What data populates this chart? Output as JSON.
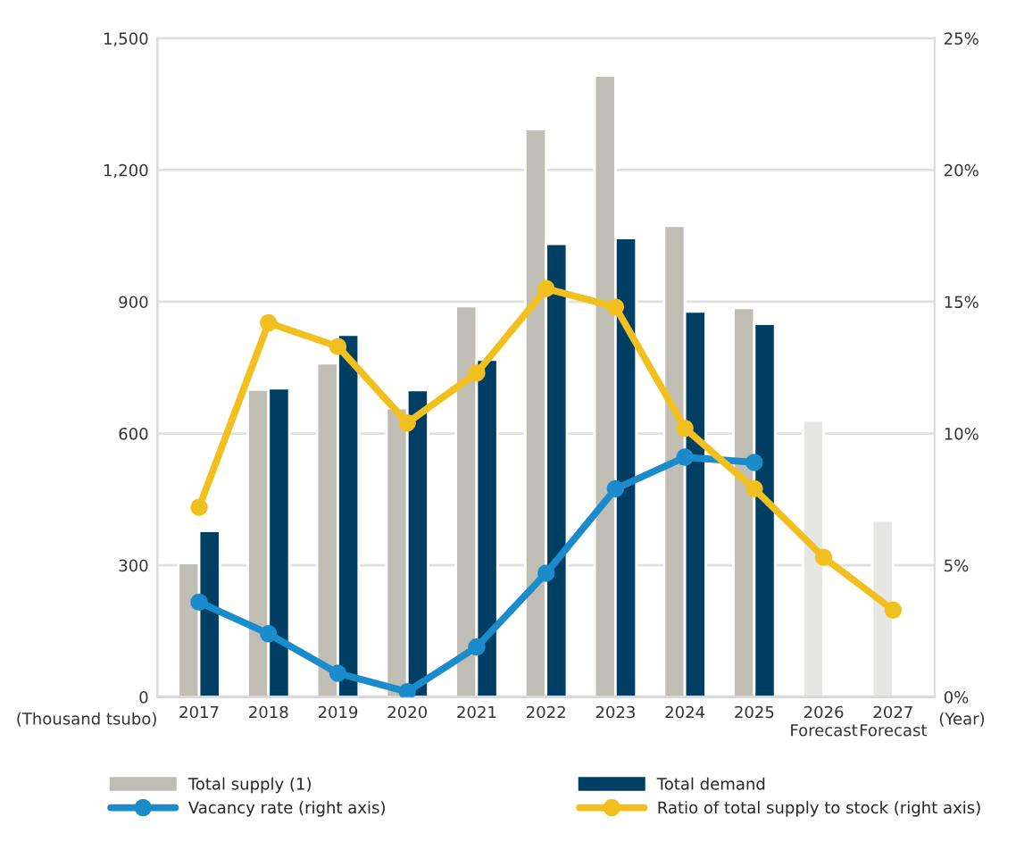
{
  "chart_data": {
    "type": "bar",
    "categories": [
      "2017",
      "2018",
      "2019",
      "2020",
      "2021",
      "2022",
      "2023",
      "2024",
      "2025",
      "2026\nForecast",
      "2027\nForecast"
    ],
    "series": [
      {
        "name": "Total supply (1)",
        "type": "bar",
        "color": "#c0bdb4",
        "colors": [
          "#c0bdb4",
          "#c0bdb4",
          "#c0bdb4",
          "#c0bdb4",
          "#c0bdb4",
          "#c0bdb4",
          "#c0bdb4",
          "#c0bdb4",
          "#c0bdb4",
          "#e6e6e4",
          "#e6e6e4"
        ],
        "values": [
          305,
          700,
          760,
          658,
          890,
          1293,
          1415,
          1073,
          886,
          630,
          402
        ]
      },
      {
        "name": "Total demand",
        "type": "bar",
        "color": "#003f63",
        "values": [
          378,
          703,
          825,
          699,
          768,
          1032,
          1045,
          878,
          850,
          null,
          null
        ]
      },
      {
        "name": "Vacancy rate (right axis)",
        "type": "line",
        "axis": "y2",
        "color": "#1a8ccc",
        "values": [
          3.6,
          2.4,
          0.9,
          0.2,
          1.9,
          4.7,
          7.9,
          9.1,
          8.9,
          null,
          null
        ]
      },
      {
        "name": "Ratio of total supply to stock (right axis)",
        "type": "line",
        "axis": "y2",
        "color": "#f2c01e",
        "values": [
          7.2,
          14.2,
          13.3,
          10.4,
          12.3,
          15.5,
          14.8,
          10.2,
          7.9,
          5.3,
          3.3
        ]
      }
    ],
    "ylabel": "(Thousand tsubo)",
    "xlabel": "(Year)",
    "ylim": [
      0,
      1500
    ],
    "yticks": [
      {
        "value": 0,
        "label": "0"
      },
      {
        "value": 300,
        "label": "300"
      },
      {
        "value": 600,
        "label": "600"
      },
      {
        "value": 900,
        "label": "900"
      },
      {
        "value": 1200,
        "label": "1,200"
      },
      {
        "value": 1500,
        "label": "1,500"
      }
    ],
    "y2lim": [
      0,
      25
    ],
    "y2ticks": [
      {
        "value": 0,
        "label": "0%"
      },
      {
        "value": 5,
        "label": "5%"
      },
      {
        "value": 10,
        "label": "10%"
      },
      {
        "value": 15,
        "label": "15%"
      },
      {
        "value": 20,
        "label": "20%"
      },
      {
        "value": 25,
        "label": "25%"
      }
    ],
    "grid": "y",
    "legend": "bottom",
    "marker": "circle",
    "line_style": "solid"
  }
}
